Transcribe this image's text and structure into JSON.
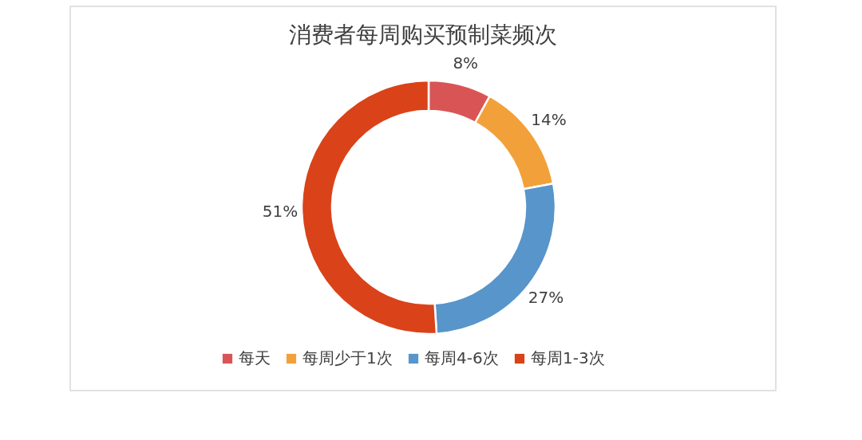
{
  "chart_data": {
    "type": "donut",
    "title": "消费者每周购买预制菜频次",
    "categories": [
      "每天",
      "每周少于1次",
      "每周4-6次",
      "每周1-3次"
    ],
    "values": [
      8,
      14,
      27,
      51
    ],
    "colors": [
      "#d95555",
      "#f2a13a",
      "#5795cb",
      "#da4219"
    ],
    "value_labels": [
      "8%",
      "14%",
      "27%",
      "51%"
    ],
    "legend": "bottom"
  }
}
